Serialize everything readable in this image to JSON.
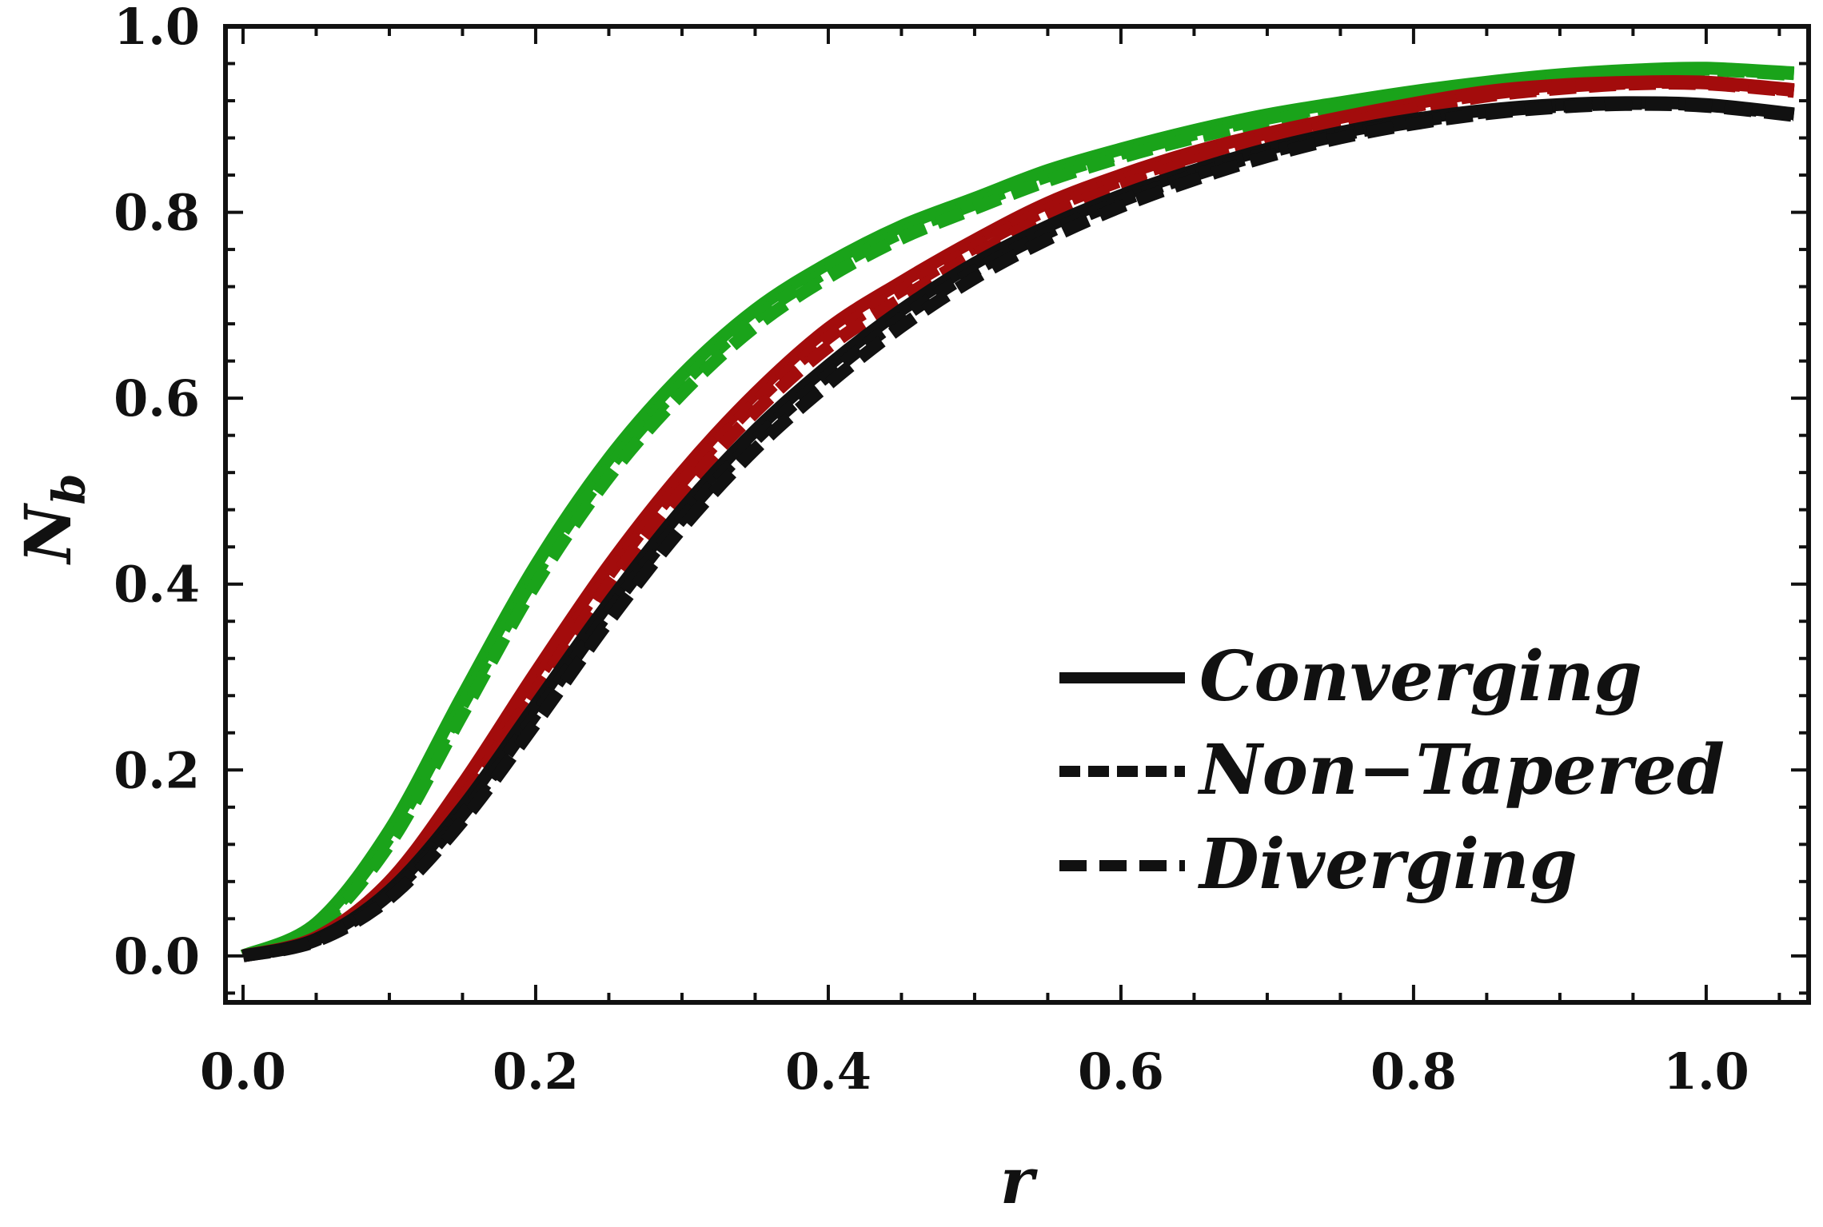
{
  "chart_data": {
    "type": "line",
    "title": "",
    "xlabel": "r",
    "ylabel": "N",
    "ylabel_subscript": "b",
    "xlim": [
      -0.012,
      1.07
    ],
    "ylim": [
      -0.05,
      1.0
    ],
    "xticks": [
      0.0,
      0.2,
      0.4,
      0.6,
      0.8,
      1.0
    ],
    "xtick_labels": [
      "0.0",
      "0.2",
      "0.4",
      "0.6",
      "0.8",
      "1.0"
    ],
    "yticks": [
      0.0,
      0.2,
      0.4,
      0.6,
      0.8,
      1.0
    ],
    "ytick_labels": [
      "0.0",
      "0.2",
      "0.4",
      "0.6",
      "0.8",
      "1.0"
    ],
    "grid": false,
    "legend_position": "bottom-right",
    "legend": [
      {
        "label": "Converging",
        "style": "solid"
      },
      {
        "label": "Non−Tapered",
        "style": "dashdot"
      },
      {
        "label": "Diverging",
        "style": "dashed"
      }
    ],
    "x": [
      0.0,
      0.05,
      0.1,
      0.15,
      0.2,
      0.25,
      0.3,
      0.35,
      0.4,
      0.45,
      0.5,
      0.55,
      0.6,
      0.65,
      0.7,
      0.75,
      0.8,
      0.85,
      0.9,
      0.95,
      1.0,
      1.06
    ],
    "series": [
      {
        "name": "green-converging",
        "group": "green",
        "style": "solid",
        "color": "#1aa31a",
        "values": [
          0.0,
          0.035,
          0.135,
          0.28,
          0.42,
          0.535,
          0.625,
          0.695,
          0.745,
          0.785,
          0.815,
          0.845,
          0.868,
          0.888,
          0.905,
          0.918,
          0.93,
          0.94,
          0.948,
          0.953,
          0.955,
          0.95
        ]
      },
      {
        "name": "green-non-tapered",
        "group": "green",
        "style": "dashdot",
        "color": "#1aa31a",
        "values": [
          0.0,
          0.033,
          0.128,
          0.27,
          0.41,
          0.525,
          0.615,
          0.686,
          0.737,
          0.778,
          0.809,
          0.839,
          0.863,
          0.884,
          0.901,
          0.915,
          0.927,
          0.937,
          0.945,
          0.951,
          0.954,
          0.949
        ]
      },
      {
        "name": "green-diverging",
        "group": "green",
        "style": "dashed",
        "color": "#1aa31a",
        "values": [
          0.0,
          0.03,
          0.12,
          0.26,
          0.4,
          0.515,
          0.605,
          0.677,
          0.73,
          0.772,
          0.804,
          0.834,
          0.859,
          0.88,
          0.898,
          0.912,
          0.925,
          0.935,
          0.943,
          0.949,
          0.953,
          0.948
        ]
      },
      {
        "name": "red-converging",
        "group": "red",
        "style": "solid",
        "color": "#a30c0c",
        "values": [
          0.0,
          0.02,
          0.08,
          0.185,
          0.305,
          0.42,
          0.52,
          0.605,
          0.675,
          0.725,
          0.77,
          0.81,
          0.84,
          0.865,
          0.885,
          0.902,
          0.917,
          0.93,
          0.937,
          0.94,
          0.94,
          0.932
        ]
      },
      {
        "name": "red-non-tapered",
        "group": "red",
        "style": "dashdot",
        "color": "#a30c0c",
        "values": [
          0.0,
          0.019,
          0.077,
          0.178,
          0.295,
          0.41,
          0.51,
          0.595,
          0.665,
          0.716,
          0.762,
          0.803,
          0.834,
          0.86,
          0.881,
          0.898,
          0.914,
          0.927,
          0.935,
          0.939,
          0.939,
          0.931
        ]
      },
      {
        "name": "red-diverging",
        "group": "red",
        "style": "dashed",
        "color": "#a30c0c",
        "values": [
          0.0,
          0.018,
          0.073,
          0.17,
          0.285,
          0.4,
          0.5,
          0.585,
          0.655,
          0.707,
          0.754,
          0.796,
          0.828,
          0.855,
          0.877,
          0.895,
          0.911,
          0.925,
          0.933,
          0.938,
          0.938,
          0.93
        ]
      },
      {
        "name": "black-converging",
        "group": "black",
        "style": "solid",
        "color": "#111111",
        "values": [
          0.0,
          0.018,
          0.07,
          0.16,
          0.27,
          0.38,
          0.48,
          0.565,
          0.635,
          0.695,
          0.745,
          0.785,
          0.818,
          0.845,
          0.868,
          0.886,
          0.9,
          0.91,
          0.916,
          0.918,
          0.916,
          0.906
        ]
      },
      {
        "name": "black-non-tapered",
        "group": "black",
        "style": "dashdot",
        "color": "#111111",
        "values": [
          0.0,
          0.017,
          0.066,
          0.152,
          0.26,
          0.37,
          0.47,
          0.555,
          0.625,
          0.686,
          0.737,
          0.778,
          0.812,
          0.84,
          0.864,
          0.883,
          0.897,
          0.908,
          0.914,
          0.917,
          0.915,
          0.905
        ]
      },
      {
        "name": "black-diverging",
        "group": "black",
        "style": "dashed",
        "color": "#111111",
        "values": [
          0.0,
          0.016,
          0.062,
          0.145,
          0.25,
          0.36,
          0.46,
          0.545,
          0.615,
          0.677,
          0.729,
          0.771,
          0.806,
          0.835,
          0.86,
          0.88,
          0.895,
          0.906,
          0.913,
          0.916,
          0.914,
          0.904
        ]
      }
    ]
  }
}
